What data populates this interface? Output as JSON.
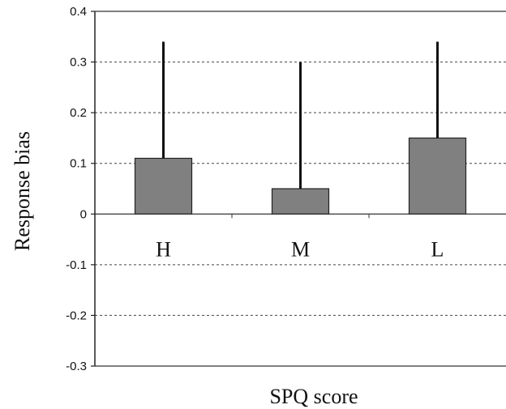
{
  "chart_data": {
    "type": "bar",
    "title": "",
    "xlabel": "SPQ score",
    "ylabel": "Response bias",
    "categories": [
      "H",
      "M",
      "L"
    ],
    "values": [
      0.11,
      0.05,
      0.15
    ],
    "error_upper": [
      0.34,
      0.3,
      0.34
    ],
    "ylim": [
      -0.3,
      0.4
    ],
    "yticks": [
      -0.3,
      -0.2,
      -0.1,
      0,
      0.1,
      0.2,
      0.3,
      0.4
    ],
    "ytick_labels": [
      "-0.3",
      "-0.2",
      "-0.1",
      "0",
      "0.1",
      "0.2",
      "0.3",
      "0.4"
    ],
    "grid": true,
    "bar_color": "#808080",
    "line_color": "#111111"
  }
}
